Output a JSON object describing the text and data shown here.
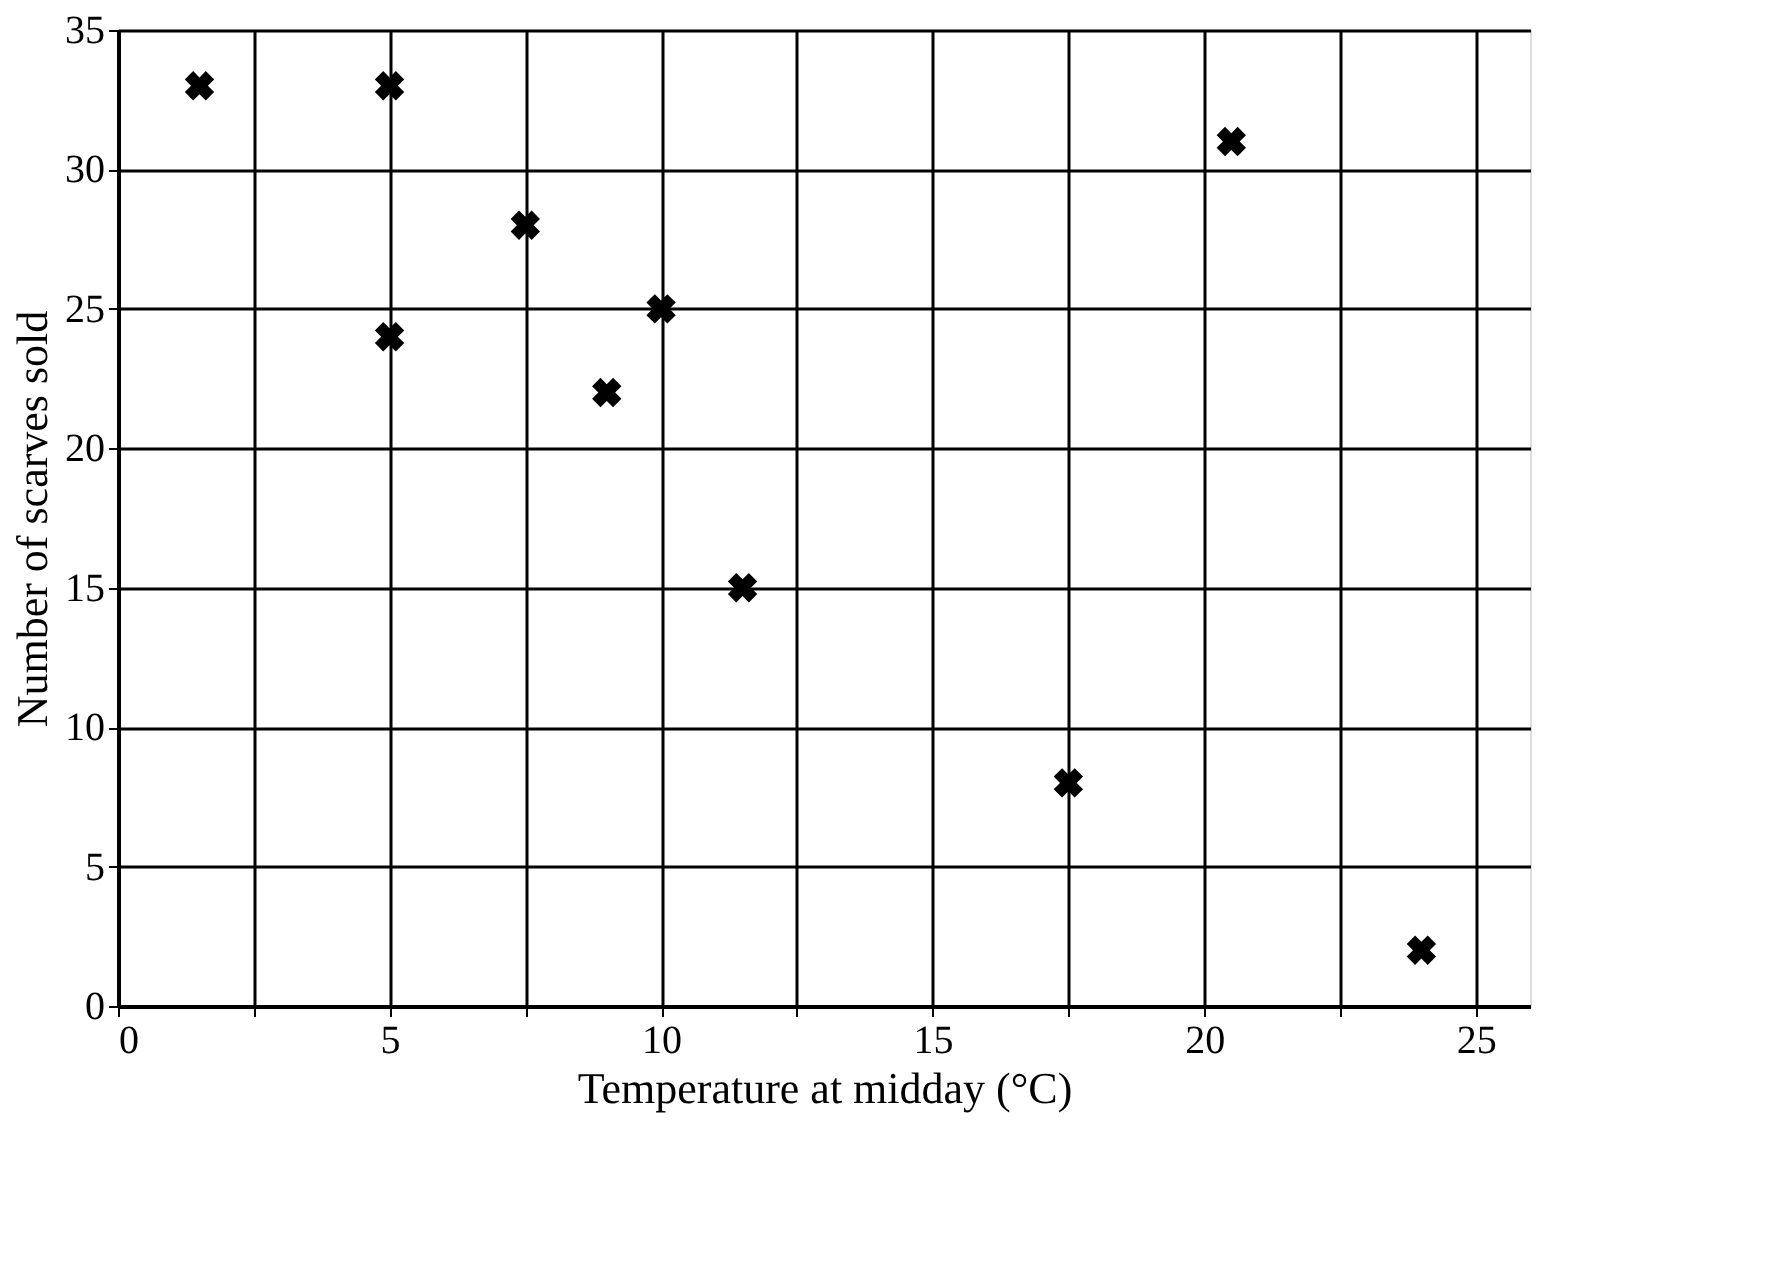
{
  "chart_data": {
    "type": "scatter",
    "xlabel": "Temperature at midday (°C)",
    "ylabel": "Number of scarves sold",
    "x": [
      1.5,
      5,
      5,
      7.5,
      9,
      10,
      11.5,
      17.5,
      20.5,
      24
    ],
    "values": [
      33,
      33,
      24,
      28,
      22,
      25,
      15,
      8,
      31,
      2
    ],
    "color": "#000000",
    "marker": "cross",
    "grid": true,
    "xlim": [
      0,
      26
    ],
    "ylim": [
      0,
      35
    ],
    "xticks": [
      0,
      {
        "value": 2.5,
        "label": null
      },
      5,
      {
        "value": 7.5,
        "label": null
      },
      10,
      {
        "value": 12.5,
        "label": null
      },
      15,
      {
        "value": 17.5,
        "label": null
      },
      20,
      {
        "value": 22.5,
        "label": null
      },
      25
    ],
    "yticks": [
      0,
      5,
      10,
      15,
      20,
      25,
      30,
      35
    ]
  }
}
